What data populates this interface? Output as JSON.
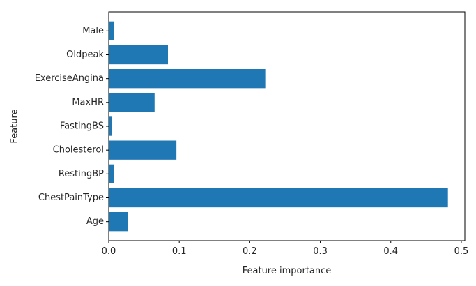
{
  "chart_data": {
    "type": "bar",
    "orientation": "horizontal",
    "categories": [
      "Age",
      "ChestPainType",
      "RestingBP",
      "Cholesterol",
      "FastingBS",
      "MaxHR",
      "ExerciseAngina",
      "Oldpeak",
      "Male"
    ],
    "values": [
      0.027,
      0.481,
      0.007,
      0.096,
      0.004,
      0.065,
      0.222,
      0.084,
      0.007
    ],
    "title": "",
    "xlabel": "Feature importance",
    "ylabel": "Feature",
    "xlim": [
      0,
      0.505
    ],
    "xticks": [
      "0.0",
      "0.1",
      "0.2",
      "0.3",
      "0.4",
      "0.5"
    ],
    "grid": false,
    "bar_color": "#1f77b4"
  }
}
